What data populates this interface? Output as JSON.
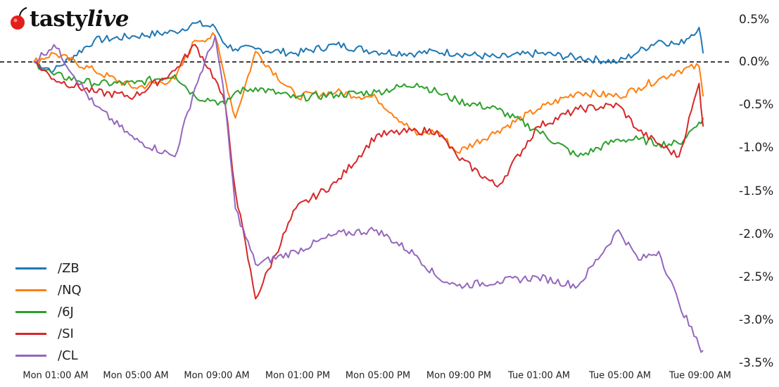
{
  "logo": {
    "brand_plain": "tasty",
    "brand_italic": "live",
    "icon": "cherry-icon",
    "icon_color": "#e0201b"
  },
  "chart_data": {
    "type": "line",
    "title": "",
    "xlabel": "",
    "ylabel": "",
    "ylim": [
      -3.5,
      0.5
    ],
    "grid": false,
    "legend_position": "lower left",
    "reference_line": {
      "y": 0.0,
      "style": "dashed",
      "color": "#000000"
    },
    "y_ticks": [
      "0.5%",
      "0.0%",
      "-0.5%",
      "-1.0%",
      "-1.5%",
      "-2.0%",
      "-2.5%",
      "-3.0%",
      "-3.5%"
    ],
    "x_ticks": [
      "Mon 01:00 AM",
      "Mon 05:00 AM",
      "Mon 09:00 AM",
      "Mon 01:00 PM",
      "Mon 05:00 PM",
      "Mon 09:00 PM",
      "Tue 01:00 AM",
      "Tue 05:00 AM",
      "Tue 09:00 AM"
    ],
    "x_hours": [
      0,
      1,
      3,
      5,
      7,
      8,
      9,
      9.5,
      10,
      11,
      13,
      15,
      17,
      19,
      20,
      21,
      23,
      25,
      27,
      29,
      30,
      31,
      32,
      33,
      33.2
    ],
    "series": [
      {
        "name": "/ZB",
        "color": "#1f77b4",
        "values": [
          0.0,
          -0.1,
          0.25,
          0.3,
          0.35,
          0.45,
          0.4,
          0.2,
          0.15,
          0.15,
          0.1,
          0.2,
          0.12,
          0.1,
          0.12,
          0.1,
          0.05,
          0.1,
          0.05,
          0.0,
          0.12,
          0.25,
          0.2,
          0.4,
          0.1
        ]
      },
      {
        "name": "/NQ",
        "color": "#ff7f0e",
        "values": [
          0.0,
          0.1,
          -0.1,
          -0.3,
          -0.2,
          0.25,
          0.3,
          -0.2,
          -0.65,
          0.12,
          -0.4,
          -0.35,
          -0.42,
          -0.85,
          -0.8,
          -1.05,
          -0.8,
          -0.55,
          -0.35,
          -0.4,
          -0.3,
          -0.2,
          -0.1,
          -0.05,
          -0.4
        ]
      },
      {
        "name": "/6J",
        "color": "#2ca02c",
        "values": [
          0.0,
          -0.15,
          -0.25,
          -0.25,
          -0.15,
          -0.4,
          -0.45,
          -0.5,
          -0.35,
          -0.3,
          -0.42,
          -0.38,
          -0.35,
          -0.25,
          -0.35,
          -0.45,
          -0.55,
          -0.8,
          -1.1,
          -0.9,
          -0.9,
          -0.95,
          -0.95,
          -0.7,
          -0.65
        ]
      },
      {
        "name": "/SI",
        "color": "#d62728",
        "values": [
          0.0,
          -0.2,
          -0.35,
          -0.4,
          -0.1,
          0.2,
          -0.2,
          -0.5,
          -1.5,
          -2.75,
          -1.7,
          -1.4,
          -0.85,
          -0.8,
          -0.8,
          -1.1,
          -1.45,
          -0.75,
          -0.55,
          -0.5,
          -0.8,
          -0.95,
          -1.1,
          -0.25,
          -0.75
        ]
      },
      {
        "name": "/CL",
        "color": "#9467bd",
        "values": [
          0.0,
          0.2,
          -0.5,
          -0.9,
          -1.1,
          -0.3,
          0.3,
          -0.5,
          -1.7,
          -2.35,
          -2.2,
          -2.0,
          -1.95,
          -2.25,
          -2.5,
          -2.6,
          -2.55,
          -2.5,
          -2.6,
          -1.95,
          -2.3,
          -2.2,
          -2.8,
          -3.3,
          -3.35
        ]
      }
    ]
  }
}
